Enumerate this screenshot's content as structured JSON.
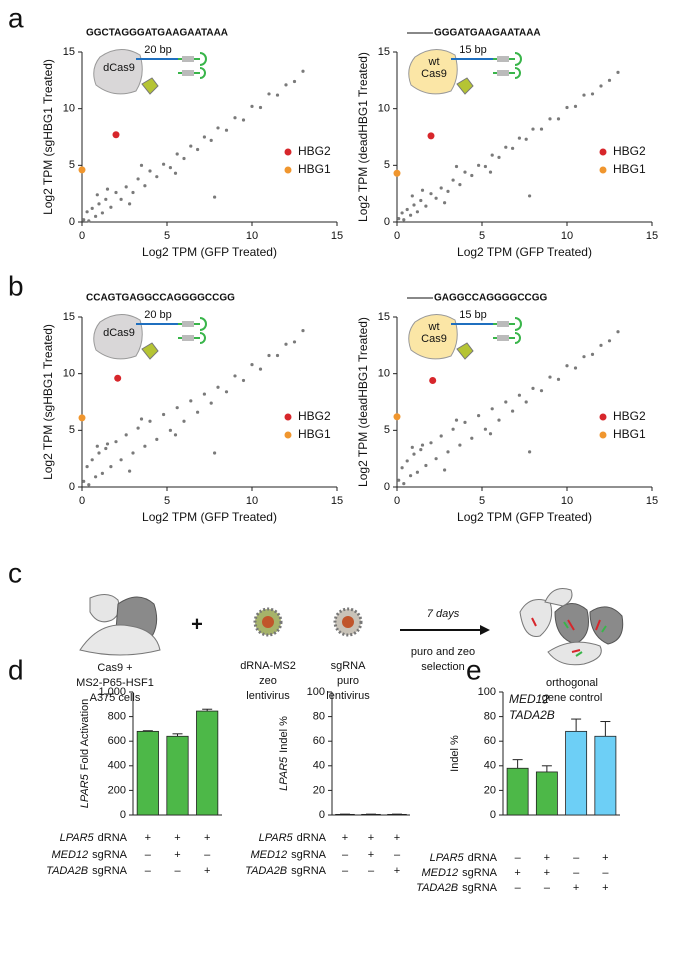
{
  "panel_labels": [
    "a",
    "b",
    "c",
    "d",
    "e"
  ],
  "chart_data": [
    {
      "type": "scatter",
      "sequence": "GGCTAGGGATGAAGAATAAA",
      "truncated": false,
      "protein_lines": [
        "dCas9"
      ],
      "protein_color": "#d9d7d8",
      "spacer": "20 bp",
      "xlabel": "Log2 TPM (GFP Treated)",
      "ylabel": "Log2 TPM (sgHBG1 Treated)",
      "xlim": [
        0,
        15
      ],
      "ylim": [
        0,
        15
      ],
      "xticks": [
        0,
        5,
        10,
        15
      ],
      "yticks": [
        0,
        5,
        10,
        15
      ],
      "series": [
        {
          "color": "#7a7a7a",
          "x": [
            0.1,
            0.3,
            0.4,
            0.6,
            0.8,
            1.0,
            1.2,
            1.4,
            1.7,
            2.0,
            2.3,
            2.6,
            3.0,
            3.3,
            3.7,
            4.0,
            4.4,
            4.8,
            5.2,
            5.6,
            6.0,
            6.4,
            6.8,
            7.2,
            7.6,
            8.0,
            8.5,
            9.0,
            9.5,
            10.0,
            10.5,
            11.0,
            11.5,
            12.0,
            12.5,
            13.0,
            1.5,
            3.5,
            5.5,
            7.8,
            0.9,
            2.8
          ],
          "y": [
            0.2,
            0.9,
            0.1,
            1.2,
            0.5,
            1.6,
            0.8,
            2.0,
            1.3,
            2.6,
            2.0,
            3.1,
            2.6,
            3.8,
            3.2,
            4.5,
            4.0,
            5.1,
            4.8,
            6.0,
            5.6,
            6.7,
            6.4,
            7.5,
            7.2,
            8.3,
            8.1,
            9.2,
            9.0,
            10.2,
            10.1,
            11.3,
            11.2,
            12.1,
            12.4,
            13.3,
            2.9,
            5.0,
            4.3,
            2.2,
            2.4,
            1.6
          ]
        },
        {
          "name": "HBG2",
          "color": "#d7262b",
          "x": [
            2
          ],
          "y": [
            7.7
          ]
        },
        {
          "name": "HBG1",
          "color": "#f0962e",
          "x": [
            0
          ],
          "y": [
            4.6
          ]
        }
      ]
    },
    {
      "type": "scatter",
      "sequence": "GGGATGAAGAATAAA",
      "truncated": true,
      "protein_lines": [
        "wt",
        "Cas9"
      ],
      "protein_color": "#fbe6a6",
      "spacer": "15 bp",
      "xlabel": "Log2 TPM (GFP Treated)",
      "ylabel": "Log2 TPM (deadHBG1 Treated)",
      "xlim": [
        0,
        15
      ],
      "ylim": [
        0,
        15
      ],
      "xticks": [
        0,
        5,
        10,
        15
      ],
      "yticks": [
        0,
        5,
        10,
        15
      ],
      "series": [
        {
          "color": "#7a7a7a",
          "x": [
            0.1,
            0.3,
            0.4,
            0.6,
            0.8,
            1.0,
            1.2,
            1.4,
            1.7,
            2.0,
            2.3,
            2.6,
            3.0,
            3.3,
            3.7,
            4.0,
            4.4,
            4.8,
            5.2,
            5.6,
            6.0,
            6.4,
            6.8,
            7.2,
            7.6,
            8.0,
            8.5,
            9.0,
            9.5,
            10.0,
            10.5,
            11.0,
            11.5,
            12.0,
            12.5,
            13.0,
            1.5,
            3.5,
            5.5,
            7.8,
            0.9,
            2.8
          ],
          "y": [
            0.3,
            0.8,
            0.2,
            1.1,
            0.6,
            1.5,
            0.9,
            1.9,
            1.4,
            2.5,
            2.1,
            3.0,
            2.7,
            3.7,
            3.3,
            4.4,
            4.1,
            5.0,
            4.9,
            5.9,
            5.7,
            6.6,
            6.5,
            7.4,
            7.3,
            8.2,
            8.2,
            9.1,
            9.1,
            10.1,
            10.2,
            11.2,
            11.3,
            12.0,
            12.5,
            13.2,
            2.8,
            4.9,
            4.4,
            2.3,
            2.3,
            1.7
          ]
        },
        {
          "name": "HBG2",
          "color": "#d7262b",
          "x": [
            2
          ],
          "y": [
            7.6
          ]
        },
        {
          "name": "HBG1",
          "color": "#f0962e",
          "x": [
            0
          ],
          "y": [
            4.3
          ]
        }
      ]
    },
    {
      "type": "scatter",
      "sequence": "CCAGTGAGGCCAGGGGCCGG",
      "truncated": false,
      "protein_lines": [
        "dCas9"
      ],
      "protein_color": "#d9d7d8",
      "spacer": "20 bp",
      "xlabel": "Log2 TPM (GFP Treated)",
      "ylabel": "Log2 TPM (sgHBG1 Treated)",
      "xlim": [
        0,
        15
      ],
      "ylim": [
        0,
        15
      ],
      "xticks": [
        0,
        5,
        10,
        15
      ],
      "yticks": [
        0,
        5,
        10,
        15
      ],
      "series": [
        {
          "color": "#7a7a7a",
          "x": [
            0.1,
            0.3,
            0.4,
            0.6,
            0.8,
            1.0,
            1.2,
            1.4,
            1.7,
            2.0,
            2.3,
            2.6,
            3.0,
            3.3,
            3.7,
            4.0,
            4.4,
            4.8,
            5.2,
            5.6,
            6.0,
            6.4,
            6.8,
            7.2,
            7.6,
            8.0,
            8.5,
            9.0,
            9.5,
            10.0,
            10.5,
            11.0,
            11.5,
            12.0,
            12.5,
            13.0,
            1.5,
            3.5,
            5.5,
            7.8,
            0.9,
            2.8
          ],
          "y": [
            0.5,
            1.8,
            0.2,
            2.4,
            0.9,
            3.0,
            1.2,
            3.4,
            1.8,
            4.0,
            2.4,
            4.6,
            3.0,
            5.2,
            3.6,
            5.8,
            4.2,
            6.4,
            5.0,
            7.0,
            5.8,
            7.6,
            6.6,
            8.2,
            7.4,
            8.8,
            8.4,
            9.8,
            9.4,
            10.8,
            10.4,
            11.6,
            11.6,
            12.6,
            12.8,
            13.8,
            3.8,
            6.0,
            4.6,
            3.0,
            3.6,
            1.4
          ]
        },
        {
          "name": "HBG2",
          "color": "#d7262b",
          "x": [
            2.1
          ],
          "y": [
            9.6
          ]
        },
        {
          "name": "HBG1",
          "color": "#f0962e",
          "x": [
            0
          ],
          "y": [
            6.1
          ]
        }
      ]
    },
    {
      "type": "scatter",
      "sequence": "GAGGCCAGGGGCCGG",
      "truncated": true,
      "protein_lines": [
        "wt",
        "Cas9"
      ],
      "protein_color": "#fbe6a6",
      "spacer": "15 bp",
      "xlabel": "Log2 TPM (GFP Treated)",
      "ylabel": "Log2 TPM (deadHBG1 Treated)",
      "xlim": [
        0,
        15
      ],
      "ylim": [
        0,
        15
      ],
      "xticks": [
        0,
        5,
        10,
        15
      ],
      "yticks": [
        0,
        5,
        10,
        15
      ],
      "series": [
        {
          "color": "#7a7a7a",
          "x": [
            0.1,
            0.3,
            0.4,
            0.6,
            0.8,
            1.0,
            1.2,
            1.4,
            1.7,
            2.0,
            2.3,
            2.6,
            3.0,
            3.3,
            3.7,
            4.0,
            4.4,
            4.8,
            5.2,
            5.6,
            6.0,
            6.4,
            6.8,
            7.2,
            7.6,
            8.0,
            8.5,
            9.0,
            9.5,
            10.0,
            10.5,
            11.0,
            11.5,
            12.0,
            12.5,
            13.0,
            1.5,
            3.5,
            5.5,
            7.8,
            0.9,
            2.8
          ],
          "y": [
            0.6,
            1.7,
            0.3,
            2.3,
            1.0,
            2.9,
            1.3,
            3.3,
            1.9,
            3.9,
            2.5,
            4.5,
            3.1,
            5.1,
            3.7,
            5.7,
            4.3,
            6.3,
            5.1,
            6.9,
            5.9,
            7.5,
            6.7,
            8.1,
            7.5,
            8.7,
            8.5,
            9.7,
            9.5,
            10.7,
            10.5,
            11.5,
            11.7,
            12.5,
            12.9,
            13.7,
            3.7,
            5.9,
            4.7,
            3.1,
            3.5,
            1.5
          ]
        },
        {
          "name": "HBG2",
          "color": "#d7262b",
          "x": [
            2.1
          ],
          "y": [
            9.4
          ]
        },
        {
          "name": "HBG1",
          "color": "#f0962e",
          "x": [
            0
          ],
          "y": [
            6.2
          ]
        }
      ]
    },
    {
      "type": "bar",
      "ylabel": {
        "gene": "LPAR5",
        "text": "Fold Activation"
      },
      "ylim": [
        0,
        1000
      ],
      "yticks": [
        0,
        200,
        400,
        600,
        800,
        {
          "value": 1000,
          "label": "1,000"
        }
      ],
      "series": [
        {
          "color": "#4db848",
          "values": [
            680,
            640,
            845
          ],
          "errors": [
            5,
            20,
            15
          ]
        }
      ],
      "conditions": [
        {
          "gene": "LPAR5",
          "label": "dRNA",
          "marks": [
            "+",
            "+",
            "+"
          ]
        },
        {
          "gene": "MED12",
          "label": "sgRNA",
          "marks": [
            "–",
            "+",
            "–"
          ]
        },
        {
          "gene": "TADA2B",
          "label": "sgRNA",
          "marks": [
            "–",
            "–",
            "+"
          ]
        }
      ]
    },
    {
      "type": "bar",
      "ylabel": {
        "gene": "LPAR5",
        "text": "Indel %"
      },
      "ylim": [
        0,
        100
      ],
      "yticks": [
        0,
        20,
        40,
        60,
        80,
        100
      ],
      "series": [
        {
          "color": "#4db848",
          "values": [
            0.5,
            0.5,
            0.5
          ],
          "errors": [
            0.2,
            0.2,
            0.2
          ]
        }
      ],
      "conditions": [
        {
          "gene": "LPAR5",
          "label": "dRNA",
          "marks": [
            "+",
            "+",
            "+"
          ]
        },
        {
          "gene": "MED12",
          "label": "sgRNA",
          "marks": [
            "–",
            "+",
            "–"
          ]
        },
        {
          "gene": "TADA2B",
          "label": "sgRNA",
          "marks": [
            "–",
            "–",
            "+"
          ]
        }
      ]
    },
    {
      "type": "bar",
      "ylabel": {
        "text": "Indel %"
      },
      "ylim": [
        0,
        100
      ],
      "yticks": [
        0,
        20,
        40,
        60,
        80,
        100
      ],
      "series": [
        {
          "name": "MED12",
          "color": "#4db848",
          "values": [
            38,
            35,
            null,
            null
          ],
          "errors": [
            7,
            5,
            null,
            null
          ]
        },
        {
          "name": "TADA2B",
          "color": "#6dcff6",
          "values": [
            null,
            null,
            68,
            64
          ],
          "errors": [
            null,
            null,
            10,
            12
          ]
        }
      ],
      "conditions": [
        {
          "gene": "LPAR5",
          "label": "dRNA",
          "marks": [
            "–",
            "+",
            "–",
            "+"
          ]
        },
        {
          "gene": "MED12",
          "label": "sgRNA",
          "marks": [
            "+",
            "+",
            "–",
            "–"
          ]
        },
        {
          "gene": "TADA2B",
          "label": "sgRNA",
          "marks": [
            "–",
            "–",
            "+",
            "+"
          ]
        }
      ]
    }
  ],
  "diagram": {
    "cells_label": [
      "Cas9 +",
      "MS2-P65-HSF1",
      "A375 cells"
    ],
    "plus": "+",
    "virus1_label": [
      "dRNA-MS2",
      "zeo",
      "lentivirus"
    ],
    "virus2_label": [
      "sgRNA",
      "puro",
      "lentivirus"
    ],
    "arrow_top": "7 days",
    "arrow_bottom": [
      "puro and zeo",
      "selection"
    ],
    "result_label": [
      "orthogonal",
      "gene control"
    ]
  }
}
